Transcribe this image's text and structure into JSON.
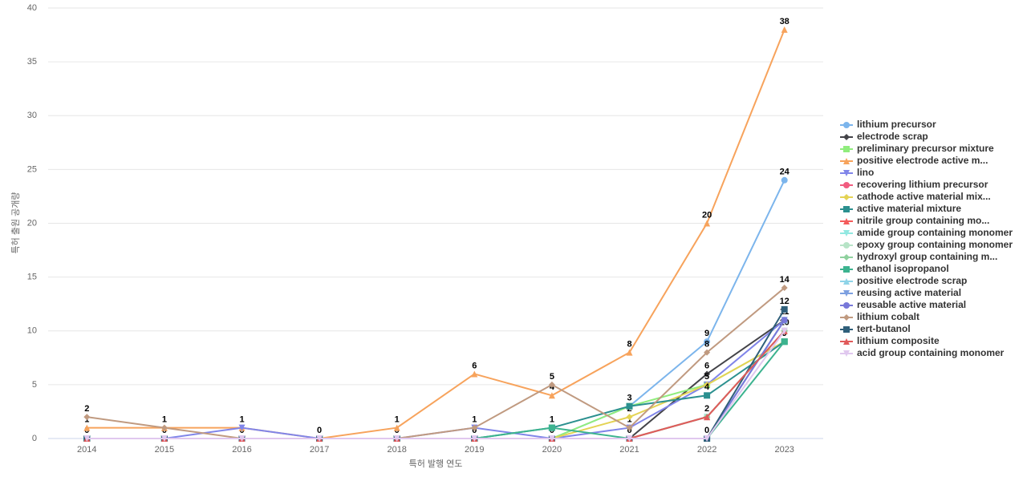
{
  "chart_data": {
    "type": "line",
    "y_label": "특허 출원 공개량",
    "x_label": "특허 발행 연도",
    "categories": [
      "2014",
      "2015",
      "2016",
      "2017",
      "2018",
      "2019",
      "2020",
      "2021",
      "2022",
      "2023"
    ],
    "ylim": [
      0,
      40
    ],
    "yticks": [
      0,
      5,
      10,
      15,
      20,
      25,
      30,
      35,
      40
    ],
    "grid": true,
    "series": [
      {
        "name": "lithium precursor",
        "color": "#7cb5ec",
        "values": [
          0,
          0,
          0,
          0,
          0,
          0,
          0,
          3,
          9,
          24
        ]
      },
      {
        "name": "electrode scrap",
        "color": "#434348",
        "values": [
          0,
          0,
          0,
          0,
          0,
          0,
          0,
          0,
          6,
          11
        ]
      },
      {
        "name": "preliminary precursor mixture",
        "color": "#90ed7d",
        "values": [
          0,
          0,
          0,
          0,
          0,
          0,
          0,
          3,
          5,
          9
        ]
      },
      {
        "name": "positive electrode active m...",
        "color": "#f7a35c",
        "values": [
          1,
          1,
          1,
          0,
          1,
          6,
          4,
          8,
          20,
          38
        ]
      },
      {
        "name": "lino",
        "color": "#8085e9",
        "values": [
          0,
          0,
          1,
          0,
          0,
          1,
          0,
          1,
          5,
          11
        ]
      },
      {
        "name": "recovering lithium precursor",
        "color": "#f15c80",
        "values": [
          0,
          0,
          0,
          0,
          0,
          0,
          0,
          0,
          2,
          10
        ]
      },
      {
        "name": "cathode active material mix...",
        "color": "#e4d354",
        "values": [
          0,
          0,
          0,
          0,
          0,
          0,
          0,
          2,
          5,
          9
        ]
      },
      {
        "name": "active material mixture",
        "color": "#2b908f",
        "values": [
          0,
          0,
          0,
          0,
          0,
          0,
          1,
          3,
          4,
          9
        ]
      },
      {
        "name": "nitrile group containing mo...",
        "color": "#f45b5b",
        "values": [
          0,
          0,
          0,
          0,
          0,
          0,
          0,
          0,
          2,
          10
        ]
      },
      {
        "name": "amide group containing monomer",
        "color": "#91e8e1",
        "values": [
          0,
          0,
          0,
          0,
          0,
          0,
          0,
          0,
          2,
          10
        ]
      },
      {
        "name": "epoxy group containing monomer",
        "color": "#b7e4c7",
        "values": [
          0,
          0,
          0,
          0,
          0,
          0,
          0,
          0,
          2,
          10
        ]
      },
      {
        "name": "hydroxyl group containing m...",
        "color": "#8fd19e",
        "values": [
          0,
          0,
          0,
          0,
          0,
          0,
          0,
          0,
          2,
          10
        ]
      },
      {
        "name": "ethanol isopropanol",
        "color": "#3cb38f",
        "values": [
          0,
          0,
          0,
          0,
          0,
          0,
          1,
          0,
          0,
          9
        ]
      },
      {
        "name": "positive electrode scrap",
        "color": "#8ed4e8",
        "values": [
          0,
          0,
          0,
          0,
          0,
          0,
          0,
          0,
          0,
          11
        ]
      },
      {
        "name": "reusing active material",
        "color": "#7c9fe0",
        "values": [
          0,
          0,
          0,
          0,
          0,
          0,
          0,
          0,
          0,
          11
        ]
      },
      {
        "name": "reusable active material",
        "color": "#7878d9",
        "values": [
          0,
          0,
          0,
          0,
          0,
          0,
          0,
          0,
          0,
          11
        ]
      },
      {
        "name": "lithium cobalt",
        "color": "#c09a80",
        "values": [
          2,
          1,
          0,
          0,
          0,
          1,
          5,
          1,
          8,
          14
        ]
      },
      {
        "name": "tert-butanol",
        "color": "#2f5f7a",
        "values": [
          0,
          0,
          0,
          0,
          0,
          0,
          0,
          0,
          0,
          12
        ]
      },
      {
        "name": "lithium composite",
        "color": "#e05a5a",
        "values": [
          0,
          0,
          0,
          0,
          0,
          0,
          0,
          0,
          2,
          10
        ]
      },
      {
        "name": "acid group containing monomer",
        "color": "#e0c8ef",
        "values": [
          0,
          0,
          0,
          0,
          0,
          0,
          0,
          0,
          0,
          10
        ]
      }
    ]
  }
}
